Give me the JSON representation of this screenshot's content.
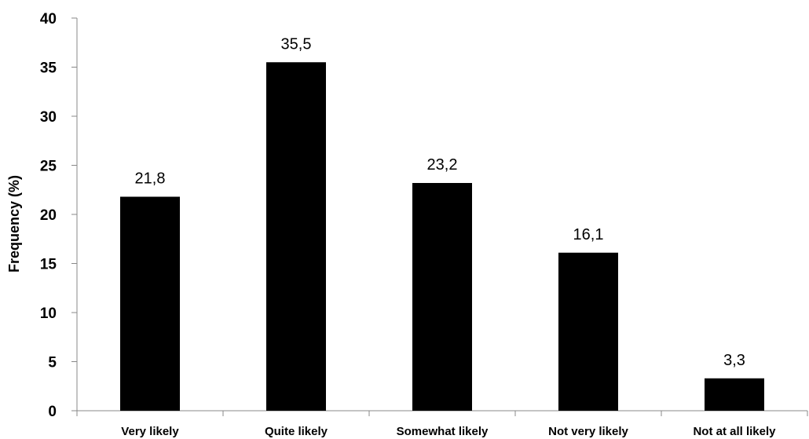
{
  "chart_data": {
    "type": "bar",
    "title": "",
    "xlabel": "",
    "ylabel": "Frequency (%)",
    "categories": [
      "Very likely",
      "Quite likely",
      "Somewhat likely",
      "Not very likely",
      "Not at all likely"
    ],
    "values": [
      21.8,
      35.5,
      23.2,
      16.1,
      3.3
    ],
    "data_labels": [
      "21,8",
      "35,5",
      "23,2",
      "16,1",
      "3,3"
    ],
    "ylim": [
      0,
      40
    ],
    "yticks": [
      0,
      5,
      10,
      15,
      20,
      25,
      30,
      35,
      40
    ],
    "grid": false,
    "legend": "none",
    "bar_color": "#000000"
  }
}
